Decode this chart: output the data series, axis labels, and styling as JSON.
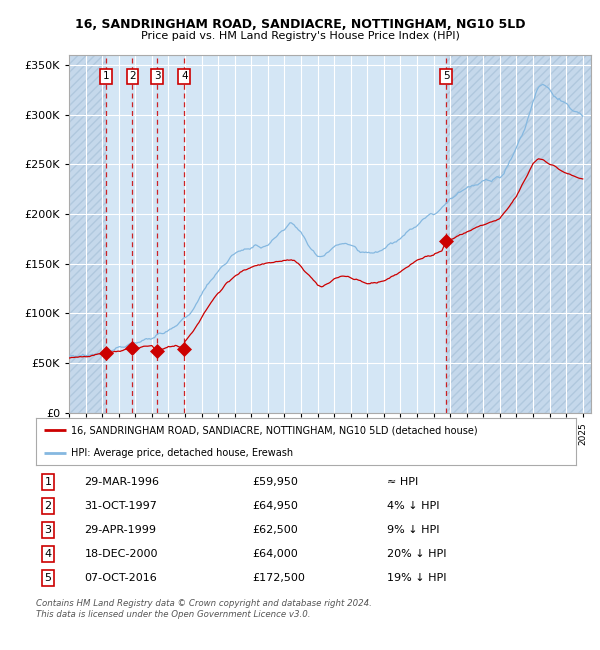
{
  "title1": "16, SANDRINGHAM ROAD, SANDIACRE, NOTTINGHAM, NG10 5LD",
  "title2": "Price paid vs. HM Land Registry's House Price Index (HPI)",
  "legend_label_red": "16, SANDRINGHAM ROAD, SANDIACRE, NOTTINGHAM, NG10 5LD (detached house)",
  "legend_label_blue": "HPI: Average price, detached house, Erewash",
  "footer1": "Contains HM Land Registry data © Crown copyright and database right 2024.",
  "footer2": "This data is licensed under the Open Government Licence v3.0.",
  "sales": [
    {
      "num": 1,
      "date_str": "29-MAR-1996",
      "date_dec": 1996.24,
      "price": 59950,
      "note": "≈ HPI"
    },
    {
      "num": 2,
      "date_str": "31-OCT-1997",
      "date_dec": 1997.83,
      "price": 64950,
      "note": "4% ↓ HPI"
    },
    {
      "num": 3,
      "date_str": "29-APR-1999",
      "date_dec": 1999.33,
      "price": 62500,
      "note": "9% ↓ HPI"
    },
    {
      "num": 4,
      "date_str": "18-DEC-2000",
      "date_dec": 2000.96,
      "price": 64000,
      "note": "20% ↓ HPI"
    },
    {
      "num": 5,
      "date_str": "07-OCT-2016",
      "date_dec": 2016.77,
      "price": 172500,
      "note": "19% ↓ HPI"
    }
  ],
  "ylim": [
    0,
    360000
  ],
  "xlim_start": 1994.0,
  "xlim_end": 2025.5,
  "yticks": [
    0,
    50000,
    100000,
    150000,
    200000,
    250000,
    300000,
    350000
  ],
  "background_color": "#daeaf7",
  "hatch_bg_color": "#c5d8eb",
  "grid_color": "#ffffff",
  "red_line_color": "#cc0000",
  "blue_line_color": "#85b8e0",
  "dashed_line_color": "#cc0000",
  "sale_marker_color": "#cc0000",
  "box_edge_color": "#cc0000",
  "between_sales_color": "#d0e4f4"
}
